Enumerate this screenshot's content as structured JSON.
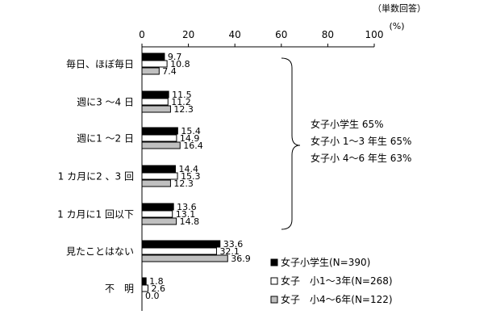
{
  "chart_data": {
    "type": "bar",
    "orientation": "horizontal",
    "note": "（単数回答）",
    "unit": "(%)",
    "xlim": [
      0,
      100
    ],
    "xticks": [
      0,
      20,
      40,
      60,
      80,
      100
    ],
    "categories": [
      "毎日、ほぼ毎日",
      "週に3 ～4 日",
      "週に1 ～2 日",
      "1 カ月に2 、3 回",
      "1 カ月に1 回以下",
      "見たことはない",
      "不　明"
    ],
    "series": [
      {
        "name": "女子小学生(N=390)",
        "color": "#000000",
        "values": [
          9.7,
          11.5,
          15.4,
          14.4,
          13.6,
          33.6,
          1.8
        ]
      },
      {
        "name": "女子　小1～3年(N=268)",
        "color": "#ffffff",
        "values": [
          10.8,
          11.2,
          14.9,
          15.3,
          13.1,
          32.1,
          2.6
        ]
      },
      {
        "name": "女子　小4～6年(N=122)",
        "color": "#c0c0c0",
        "values": [
          7.4,
          12.3,
          16.4,
          12.3,
          14.8,
          36.9,
          0.0
        ]
      }
    ],
    "value_labels": [
      [
        "9.7",
        "11.5",
        "15.4",
        "14.4",
        "13.6",
        "33.6",
        "1.8"
      ],
      [
        "10.8",
        "11.2",
        "14.9",
        "15.3",
        "13.1",
        "32.1",
        "2.6"
      ],
      [
        "7.4",
        "12.3",
        "16.4",
        "12.3",
        "14.8",
        "36.9",
        "0.0"
      ]
    ],
    "bracket_annotation": [
      "女子小学生  65%",
      "女子小 1～3 年生  65%",
      "女子小 4～6 年生  63%"
    ],
    "legend_position": "bottom-right"
  }
}
